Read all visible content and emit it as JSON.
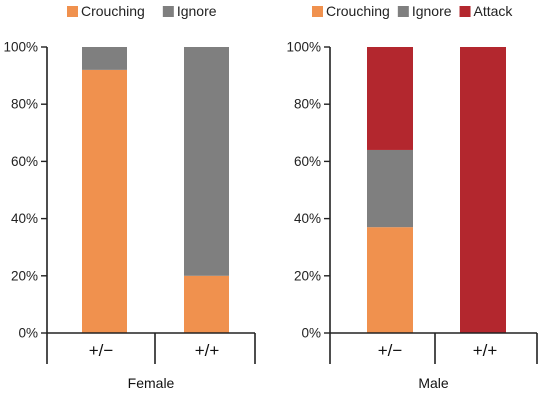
{
  "chart_data": [
    {
      "type": "bar",
      "stacked": true,
      "percent": true,
      "group_label": "Female",
      "categories": [
        "+/−",
        "+/+"
      ],
      "series": [
        {
          "name": "Crouching",
          "color": "#F0914E",
          "values": [
            92,
            20
          ]
        },
        {
          "name": "Ignore",
          "color": "#7F7F7F",
          "values": [
            8,
            80
          ]
        }
      ],
      "ylim": [
        0,
        100
      ],
      "yticks": [
        0,
        20,
        40,
        60,
        80,
        100
      ],
      "ytick_labels": [
        "0%",
        "20%",
        "40%",
        "60%",
        "80%",
        "100%"
      ],
      "grid": false,
      "legend_position": "top"
    },
    {
      "type": "bar",
      "stacked": true,
      "percent": true,
      "group_label": "Male",
      "categories": [
        "+/−",
        "+/+"
      ],
      "series": [
        {
          "name": "Crouching",
          "color": "#F0914E",
          "values": [
            37,
            0
          ]
        },
        {
          "name": "Ignore",
          "color": "#7F7F7F",
          "values": [
            27,
            0
          ]
        },
        {
          "name": "Attack",
          "color": "#B3272E",
          "values": [
            36,
            100
          ]
        }
      ],
      "ylim": [
        0,
        100
      ],
      "yticks": [
        0,
        20,
        40,
        60,
        80,
        100
      ],
      "ytick_labels": [
        "0%",
        "20%",
        "40%",
        "60%",
        "80%",
        "100%"
      ],
      "grid": false,
      "legend_position": "top"
    }
  ]
}
